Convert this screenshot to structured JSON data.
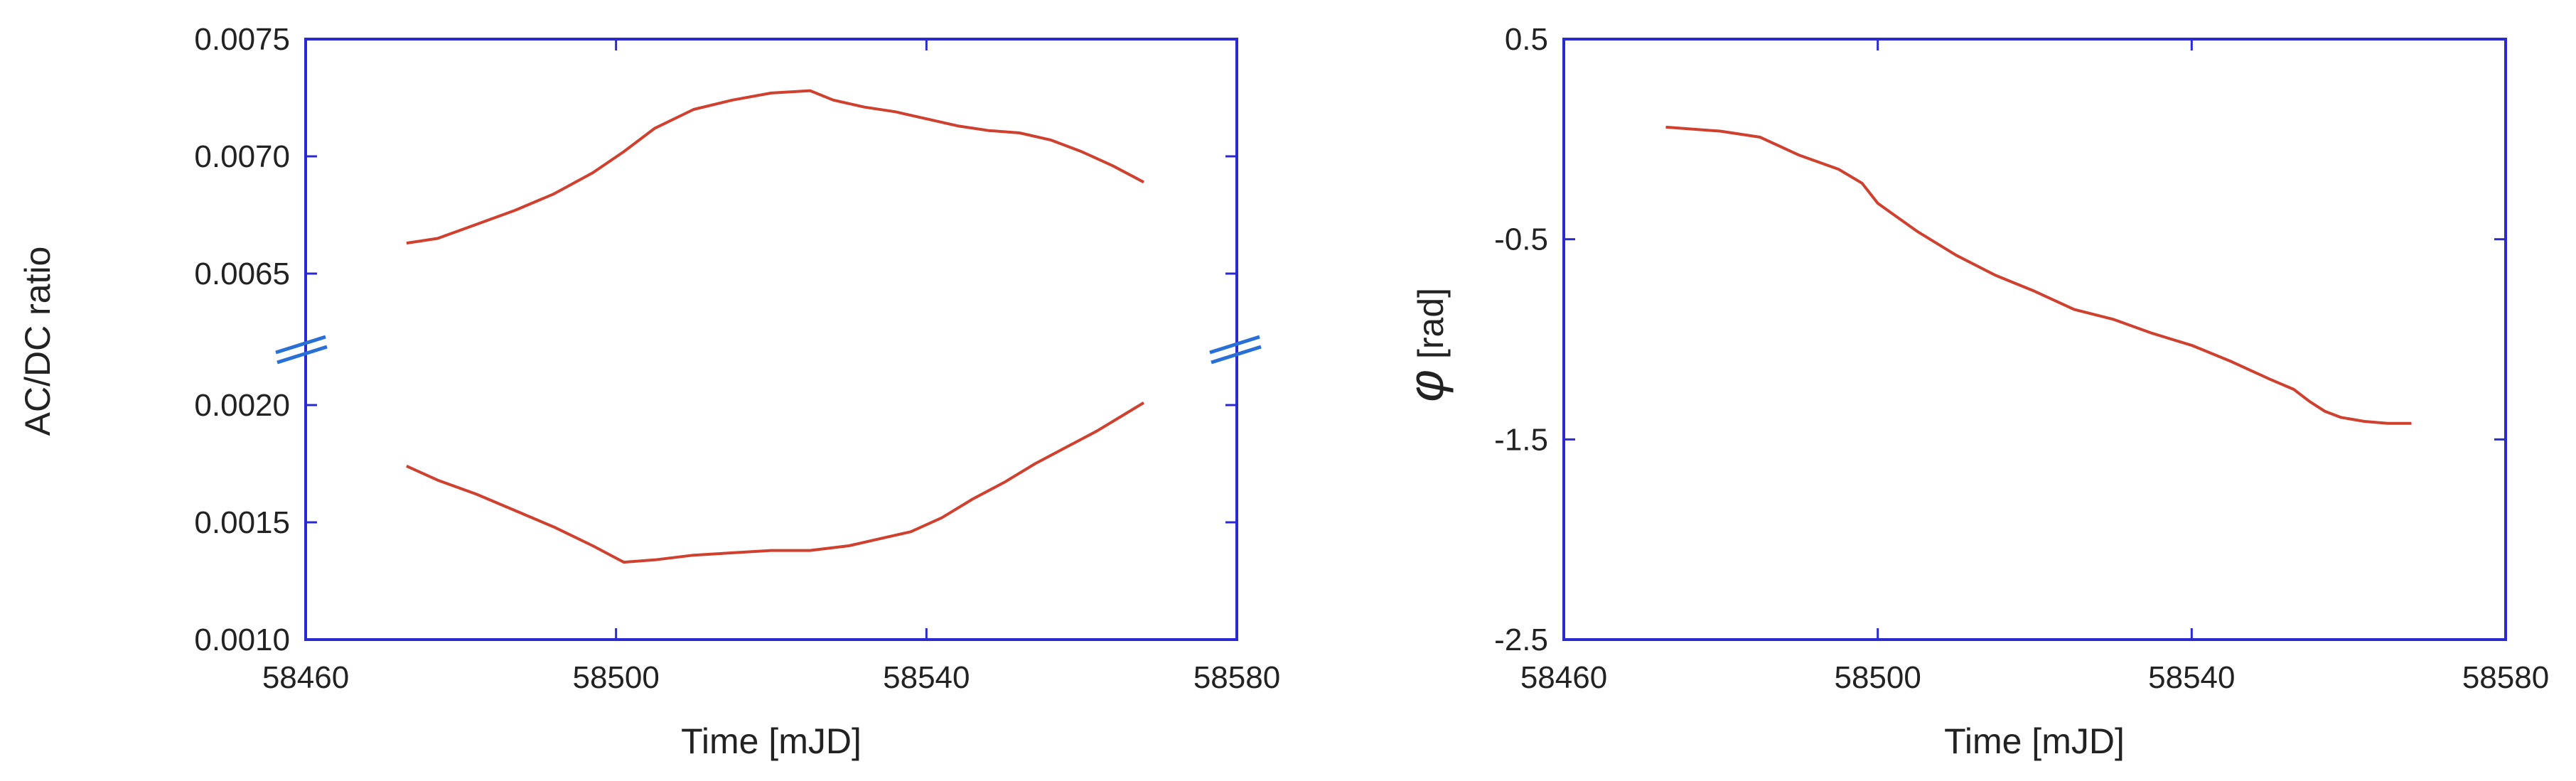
{
  "chart_data": [
    {
      "type": "line",
      "panel": "left",
      "xlabel": "Time [mJD]",
      "ylabel": "AC/DC ratio",
      "xlim": [
        58460,
        58580
      ],
      "xticks": [
        "58460",
        "58500",
        "58540",
        "58580"
      ],
      "y_axis_break": true,
      "upper_segment": {
        "ylim": [
          0.0065,
          0.0075
        ],
        "yticks": [
          "0.0075",
          "0.0070",
          "0.0065"
        ]
      },
      "lower_segment": {
        "ylim": [
          0.001,
          0.002
        ],
        "yticks": [
          "0.0020",
          "0.0015",
          "0.0010"
        ]
      },
      "series": [
        {
          "color": "#d0402f",
          "segment": "upper",
          "points": [
            [
              58473,
              0.00663
            ],
            [
              58477,
              0.00665
            ],
            [
              58482,
              0.00671
            ],
            [
              58487,
              0.00677
            ],
            [
              58492,
              0.00684
            ],
            [
              58497,
              0.00693
            ],
            [
              58501,
              0.00702
            ],
            [
              58505,
              0.00712
            ],
            [
              58510,
              0.0072
            ],
            [
              58515,
              0.00724
            ],
            [
              58520,
              0.00727
            ],
            [
              58525,
              0.00728
            ],
            [
              58528,
              0.00724
            ],
            [
              58532,
              0.00721
            ],
            [
              58536,
              0.00719
            ],
            [
              58540,
              0.00716
            ],
            [
              58544,
              0.00713
            ],
            [
              58548,
              0.00711
            ],
            [
              58552,
              0.0071
            ],
            [
              58556,
              0.00707
            ],
            [
              58560,
              0.00702
            ],
            [
              58564,
              0.00696
            ],
            [
              58568,
              0.00689
            ]
          ]
        },
        {
          "color": "#d0402f",
          "segment": "lower",
          "points": [
            [
              58473,
              0.00174
            ],
            [
              58477,
              0.00168
            ],
            [
              58482,
              0.00162
            ],
            [
              58487,
              0.00155
            ],
            [
              58492,
              0.00148
            ],
            [
              58497,
              0.0014
            ],
            [
              58501,
              0.00133
            ],
            [
              58505,
              0.00134
            ],
            [
              58510,
              0.00136
            ],
            [
              58515,
              0.00137
            ],
            [
              58520,
              0.00138
            ],
            [
              58525,
              0.00138
            ],
            [
              58530,
              0.0014
            ],
            [
              58534,
              0.00143
            ],
            [
              58538,
              0.00146
            ],
            [
              58542,
              0.00152
            ],
            [
              58546,
              0.0016
            ],
            [
              58550,
              0.00167
            ],
            [
              58554,
              0.00175
            ],
            [
              58558,
              0.00182
            ],
            [
              58562,
              0.00189
            ],
            [
              58565,
              0.00195
            ],
            [
              58568,
              0.00201
            ]
          ]
        }
      ]
    },
    {
      "type": "line",
      "panel": "right",
      "xlabel": "Time [mJD]",
      "ylabel_symbol": "φ",
      "ylabel_unit": "[rad]",
      "xlim": [
        58460,
        58580
      ],
      "ylim": [
        -2.5,
        0.5
      ],
      "xticks": [
        "58460",
        "58500",
        "58540",
        "58580"
      ],
      "yticks": [
        "0.5",
        "-0.5",
        "-1.5",
        "-2.5"
      ],
      "series": [
        {
          "color": "#d0402f",
          "points": [
            [
              58473,
              0.06
            ],
            [
              58480,
              0.04
            ],
            [
              58485,
              0.01
            ],
            [
              58490,
              -0.08
            ],
            [
              58495,
              -0.15
            ],
            [
              58498,
              -0.22
            ],
            [
              58500,
              -0.32
            ],
            [
              58505,
              -0.46
            ],
            [
              58510,
              -0.58
            ],
            [
              58515,
              -0.68
            ],
            [
              58520,
              -0.76
            ],
            [
              58525,
              -0.85
            ],
            [
              58530,
              -0.9
            ],
            [
              58535,
              -0.97
            ],
            [
              58540,
              -1.03
            ],
            [
              58545,
              -1.11
            ],
            [
              58550,
              -1.2
            ],
            [
              58553,
              -1.25
            ],
            [
              58555,
              -1.31
            ],
            [
              58557,
              -1.36
            ],
            [
              58559,
              -1.39
            ],
            [
              58562,
              -1.41
            ],
            [
              58565,
              -1.42
            ],
            [
              58568,
              -1.42
            ]
          ]
        }
      ]
    }
  ]
}
